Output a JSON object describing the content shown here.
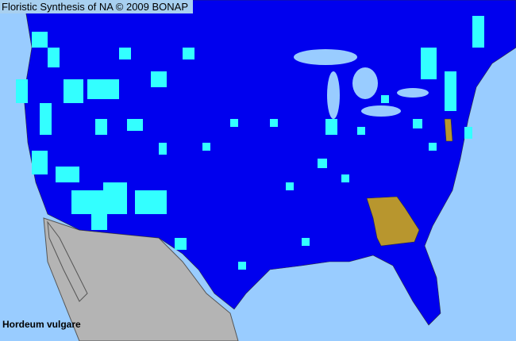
{
  "header": {
    "title": "Floristic Synthesis of NA © 2009 BONAP"
  },
  "map": {
    "species": "Hordeum vulgare",
    "colors": {
      "water": "#99ccff",
      "land_present": "#0000ee",
      "county_present": "#33ffff",
      "state_highlight": "#b8962e",
      "outside_range": "#b4b4b4",
      "border": "#555555"
    }
  }
}
